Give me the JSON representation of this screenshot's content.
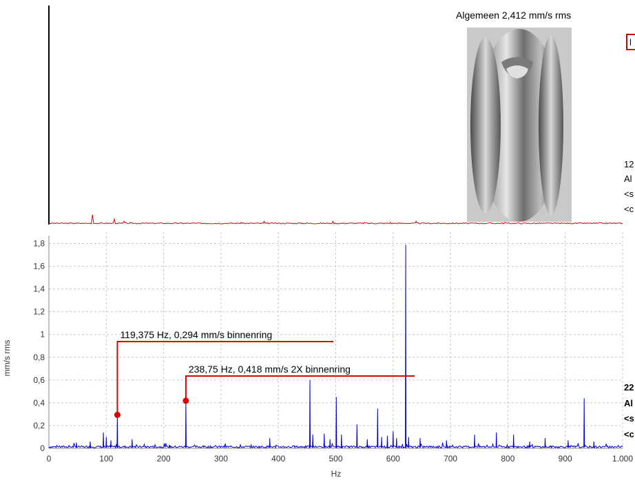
{
  "header": {
    "overall_label": "Algemeen 2,412 mm/s rms"
  },
  "side_panel_top": {
    "line1": "12",
    "line2": "Al",
    "line3": "<s",
    "line4": "<c"
  },
  "side_panel_bottom": {
    "line1": "22",
    "line2": "Al",
    "line3": "<s",
    "line4": "<c"
  },
  "legend_box_text": "l",
  "colors": {
    "lower_spectrum": "#0000cc",
    "upper_spectrum": "#dd0000",
    "annotation": "#dd0000",
    "grid": "#c8c8c8"
  },
  "image": {
    "name": "bearing-inner-ring-photo"
  },
  "chart_data": [
    {
      "type": "line",
      "name": "upper-spectrum",
      "xlim": [
        0,
        1000
      ],
      "x": [
        0,
        30,
        70,
        76,
        82,
        110,
        114,
        118,
        125,
        131,
        200,
        330,
        335,
        340,
        370,
        375,
        380,
        490,
        495,
        500,
        550,
        595,
        640,
        795,
        900,
        1000
      ],
      "y": [
        0.01,
        0.01,
        0.01,
        0.09,
        0.01,
        0.01,
        0.05,
        0.01,
        0.01,
        0.03,
        0.01,
        0.01,
        0.02,
        0.01,
        0.01,
        0.03,
        0.01,
        0.01,
        0.03,
        0.01,
        0.02,
        0.02,
        0.03,
        0.02,
        0.01,
        0.01
      ]
    },
    {
      "type": "line",
      "name": "lower-spectrum",
      "xlabel": "Hz",
      "ylabel": "mm/s rms",
      "xlim": [
        0,
        1000
      ],
      "ylim": [
        0,
        1.9
      ],
      "grid": true,
      "x_ticks": [
        "0",
        "100",
        "200",
        "300",
        "400",
        "500",
        "600",
        "700",
        "800",
        "900",
        "1.000"
      ],
      "y_ticks": [
        "0",
        "0,2",
        "0,4",
        "0,6",
        "0,8",
        "1",
        "1,2",
        "1,4",
        "1,6",
        "1,8"
      ],
      "peaks": [
        {
          "x": 48,
          "y": 0.05
        },
        {
          "x": 72,
          "y": 0.06
        },
        {
          "x": 95,
          "y": 0.14
        },
        {
          "x": 100,
          "y": 0.1
        },
        {
          "x": 108,
          "y": 0.07
        },
        {
          "x": 119.375,
          "y": 0.294
        },
        {
          "x": 145,
          "y": 0.08
        },
        {
          "x": 210,
          "y": 0.03
        },
        {
          "x": 238.75,
          "y": 0.418
        },
        {
          "x": 385,
          "y": 0.09
        },
        {
          "x": 455,
          "y": 0.6
        },
        {
          "x": 460,
          "y": 0.12
        },
        {
          "x": 480,
          "y": 0.13
        },
        {
          "x": 490,
          "y": 0.08
        },
        {
          "x": 501,
          "y": 0.45
        },
        {
          "x": 510,
          "y": 0.12
        },
        {
          "x": 537,
          "y": 0.21
        },
        {
          "x": 555,
          "y": 0.08
        },
        {
          "x": 573,
          "y": 0.35
        },
        {
          "x": 580,
          "y": 0.1
        },
        {
          "x": 590,
          "y": 0.11
        },
        {
          "x": 600,
          "y": 0.15
        },
        {
          "x": 606,
          "y": 0.09
        },
        {
          "x": 622,
          "y": 1.79
        },
        {
          "x": 627,
          "y": 0.1
        },
        {
          "x": 647,
          "y": 0.09
        },
        {
          "x": 693,
          "y": 0.07
        },
        {
          "x": 742,
          "y": 0.12
        },
        {
          "x": 780,
          "y": 0.14
        },
        {
          "x": 810,
          "y": 0.12
        },
        {
          "x": 838,
          "y": 0.06
        },
        {
          "x": 865,
          "y": 0.09
        },
        {
          "x": 905,
          "y": 0.07
        },
        {
          "x": 933,
          "y": 0.44
        },
        {
          "x": 950,
          "y": 0.06
        }
      ],
      "markers": [
        {
          "x": 119.375,
          "y": 0.294,
          "label": "119,375 Hz, 0,294 mm/s binnenring"
        },
        {
          "x": 238.75,
          "y": 0.418,
          "label": "238,75 Hz, 0,418 mm/s 2X binnenring"
        }
      ]
    }
  ]
}
